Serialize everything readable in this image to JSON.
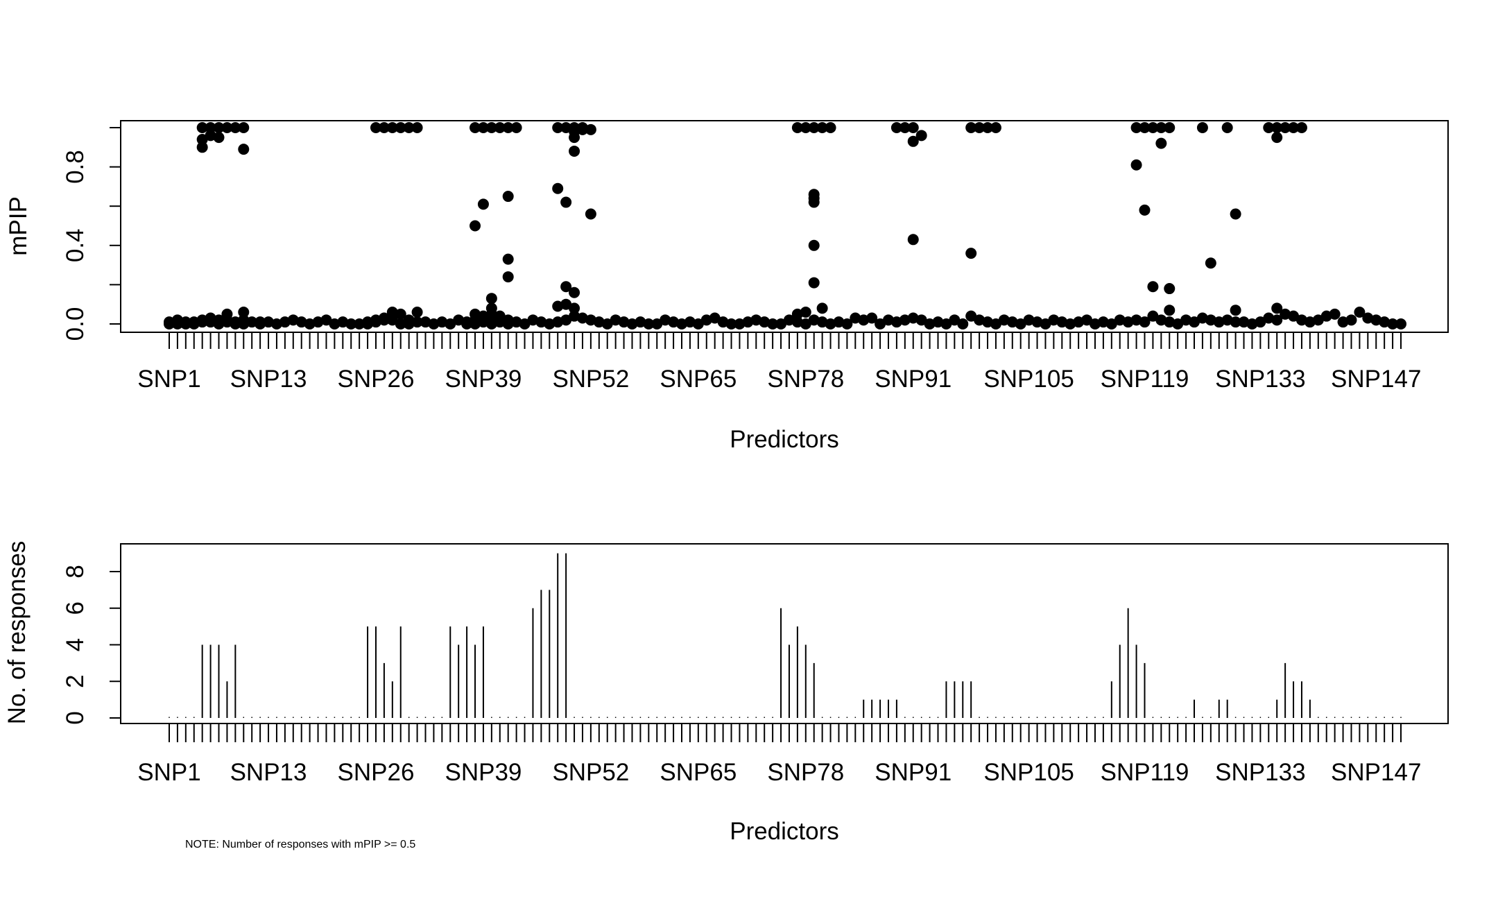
{
  "chart_data": [
    {
      "type": "scatter",
      "xlabel": "Predictors",
      "ylabel": "mPIP",
      "ylim": [
        0,
        1
      ],
      "yticks": [
        "0.0",
        "0.4",
        "0.8"
      ],
      "ytick_values": [
        0.0,
        0.4,
        0.8
      ],
      "n_predictors": 150,
      "xtick_labels": [
        {
          "index": 1,
          "label": "SNP1"
        },
        {
          "index": 13,
          "label": "SNP13"
        },
        {
          "index": 26,
          "label": "SNP26"
        },
        {
          "index": 39,
          "label": "SNP39"
        },
        {
          "index": 52,
          "label": "SNP52"
        },
        {
          "index": 65,
          "label": "SNP65"
        },
        {
          "index": 78,
          "label": "SNP78"
        },
        {
          "index": 91,
          "label": "SNP91"
        },
        {
          "index": 105,
          "label": "SNP105"
        },
        {
          "index": 119,
          "label": "SNP119"
        },
        {
          "index": 133,
          "label": "SNP133"
        },
        {
          "index": 147,
          "label": "SNP147"
        }
      ],
      "points": [
        [
          1,
          0.0
        ],
        [
          1,
          0.01
        ],
        [
          2,
          0.0
        ],
        [
          2,
          0.02
        ],
        [
          3,
          0.0
        ],
        [
          3,
          0.01
        ],
        [
          4,
          0.0
        ],
        [
          4,
          0.01
        ],
        [
          5,
          0.9
        ],
        [
          5,
          0.94
        ],
        [
          5,
          1.0
        ],
        [
          5,
          0.02
        ],
        [
          5,
          0.01
        ],
        [
          6,
          0.96
        ],
        [
          6,
          1.0
        ],
        [
          6,
          0.03
        ],
        [
          6,
          0.01
        ],
        [
          7,
          0.95
        ],
        [
          7,
          1.0
        ],
        [
          7,
          0.02
        ],
        [
          7,
          0.0
        ],
        [
          8,
          1.0
        ],
        [
          8,
          0.05
        ],
        [
          8,
          0.02
        ],
        [
          8,
          0.01
        ],
        [
          9,
          1.0
        ],
        [
          9,
          0.01
        ],
        [
          9,
          0.0
        ],
        [
          10,
          1.0
        ],
        [
          10,
          0.89
        ],
        [
          10,
          0.06
        ],
        [
          10,
          0.02
        ],
        [
          10,
          0.0
        ],
        [
          11,
          0.01
        ],
        [
          12,
          0.0
        ],
        [
          12,
          0.01
        ],
        [
          13,
          0.01
        ],
        [
          14,
          0.0
        ],
        [
          15,
          0.01
        ],
        [
          16,
          0.02
        ],
        [
          17,
          0.01
        ],
        [
          18,
          0.0
        ],
        [
          19,
          0.01
        ],
        [
          20,
          0.02
        ],
        [
          21,
          0.0
        ],
        [
          22,
          0.01
        ],
        [
          23,
          0.0
        ],
        [
          24,
          0.0
        ],
        [
          25,
          0.0
        ],
        [
          25,
          0.01
        ],
        [
          26,
          1.0
        ],
        [
          26,
          0.02
        ],
        [
          26,
          0.01
        ],
        [
          27,
          1.0
        ],
        [
          27,
          0.03
        ],
        [
          27,
          0.02
        ],
        [
          28,
          1.0
        ],
        [
          28,
          0.06
        ],
        [
          28,
          0.02
        ],
        [
          29,
          1.0
        ],
        [
          29,
          0.05
        ],
        [
          29,
          0.0
        ],
        [
          30,
          1.0
        ],
        [
          30,
          0.02
        ],
        [
          30,
          0.0
        ],
        [
          31,
          1.0
        ],
        [
          31,
          0.06
        ],
        [
          31,
          0.01
        ],
        [
          32,
          0.01
        ],
        [
          33,
          0.0
        ],
        [
          34,
          0.01
        ],
        [
          35,
          0.0
        ],
        [
          36,
          0.02
        ],
        [
          37,
          0.0
        ],
        [
          37,
          0.01
        ],
        [
          38,
          1.0
        ],
        [
          38,
          0.5
        ],
        [
          38,
          0.05
        ],
        [
          38,
          0.02
        ],
        [
          38,
          0.0
        ],
        [
          39,
          1.0
        ],
        [
          39,
          0.61
        ],
        [
          39,
          0.04
        ],
        [
          39,
          0.01
        ],
        [
          40,
          1.0
        ],
        [
          40,
          0.13
        ],
        [
          40,
          0.08
        ],
        [
          40,
          0.05
        ],
        [
          40,
          0.02
        ],
        [
          40,
          0.0
        ],
        [
          41,
          1.0
        ],
        [
          41,
          0.04
        ],
        [
          41,
          0.01
        ],
        [
          42,
          1.0
        ],
        [
          42,
          0.65
        ],
        [
          42,
          0.33
        ],
        [
          42,
          0.24
        ],
        [
          42,
          0.02
        ],
        [
          42,
          0.0
        ],
        [
          43,
          1.0
        ],
        [
          43,
          0.01
        ],
        [
          44,
          0.0
        ],
        [
          45,
          0.02
        ],
        [
          46,
          0.01
        ],
        [
          47,
          0.0
        ],
        [
          48,
          1.0
        ],
        [
          48,
          0.69
        ],
        [
          48,
          0.09
        ],
        [
          48,
          0.01
        ],
        [
          49,
          1.0
        ],
        [
          49,
          0.62
        ],
        [
          49,
          0.19
        ],
        [
          49,
          0.1
        ],
        [
          49,
          0.02
        ],
        [
          50,
          1.0
        ],
        [
          50,
          0.98
        ],
        [
          50,
          0.95
        ],
        [
          50,
          0.88
        ],
        [
          50,
          0.16
        ],
        [
          50,
          0.08
        ],
        [
          50,
          0.04
        ],
        [
          51,
          1.0
        ],
        [
          51,
          0.99
        ],
        [
          51,
          0.03
        ],
        [
          52,
          0.99
        ],
        [
          52,
          0.56
        ],
        [
          52,
          0.02
        ],
        [
          53,
          0.01
        ],
        [
          54,
          0.0
        ],
        [
          55,
          0.02
        ],
        [
          56,
          0.01
        ],
        [
          57,
          0.0
        ],
        [
          58,
          0.01
        ],
        [
          59,
          0.0
        ],
        [
          60,
          0.0
        ],
        [
          61,
          0.02
        ],
        [
          62,
          0.01
        ],
        [
          63,
          0.0
        ],
        [
          64,
          0.01
        ],
        [
          65,
          0.0
        ],
        [
          66,
          0.02
        ],
        [
          67,
          0.03
        ],
        [
          68,
          0.01
        ],
        [
          69,
          0.0
        ],
        [
          70,
          0.0
        ],
        [
          71,
          0.01
        ],
        [
          72,
          0.02
        ],
        [
          73,
          0.01
        ],
        [
          74,
          0.0
        ],
        [
          75,
          0.0
        ],
        [
          76,
          0.02
        ],
        [
          77,
          1.0
        ],
        [
          77,
          0.05
        ],
        [
          77,
          0.01
        ],
        [
          78,
          1.0
        ],
        [
          78,
          0.06
        ],
        [
          78,
          0.0
        ],
        [
          79,
          1.0
        ],
        [
          79,
          0.66
        ],
        [
          79,
          0.64
        ],
        [
          79,
          0.62
        ],
        [
          79,
          0.4
        ],
        [
          79,
          0.21
        ],
        [
          79,
          0.02
        ],
        [
          80,
          1.0
        ],
        [
          80,
          0.08
        ],
        [
          80,
          0.01
        ],
        [
          81,
          1.0
        ],
        [
          81,
          0.0
        ],
        [
          82,
          0.01
        ],
        [
          83,
          0.0
        ],
        [
          84,
          0.03
        ],
        [
          85,
          0.02
        ],
        [
          86,
          0.03
        ],
        [
          87,
          0.0
        ],
        [
          88,
          0.02
        ],
        [
          89,
          1.0
        ],
        [
          89,
          0.01
        ],
        [
          90,
          1.0
        ],
        [
          90,
          0.02
        ],
        [
          91,
          1.0
        ],
        [
          91,
          0.93
        ],
        [
          91,
          0.43
        ],
        [
          91,
          0.03
        ],
        [
          92,
          0.96
        ],
        [
          92,
          0.02
        ],
        [
          93,
          0.0
        ],
        [
          94,
          0.01
        ],
        [
          95,
          0.0
        ],
        [
          96,
          0.02
        ],
        [
          97,
          0.0
        ],
        [
          98,
          1.0
        ],
        [
          98,
          0.36
        ],
        [
          98,
          0.04
        ],
        [
          99,
          1.0
        ],
        [
          99,
          0.02
        ],
        [
          100,
          1.0
        ],
        [
          100,
          0.01
        ],
        [
          101,
          1.0
        ],
        [
          101,
          0.0
        ],
        [
          102,
          0.02
        ],
        [
          103,
          0.01
        ],
        [
          104,
          0.0
        ],
        [
          105,
          0.02
        ],
        [
          106,
          0.01
        ],
        [
          107,
          0.0
        ],
        [
          108,
          0.02
        ],
        [
          109,
          0.01
        ],
        [
          110,
          0.0
        ],
        [
          111,
          0.01
        ],
        [
          112,
          0.02
        ],
        [
          113,
          0.0
        ],
        [
          114,
          0.01
        ],
        [
          115,
          0.0
        ],
        [
          116,
          0.02
        ],
        [
          117,
          0.01
        ],
        [
          118,
          1.0
        ],
        [
          118,
          0.81
        ],
        [
          118,
          0.02
        ],
        [
          119,
          1.0
        ],
        [
          119,
          0.58
        ],
        [
          119,
          0.01
        ],
        [
          120,
          1.0
        ],
        [
          120,
          0.19
        ],
        [
          120,
          0.04
        ],
        [
          121,
          1.0
        ],
        [
          121,
          0.92
        ],
        [
          121,
          0.02
        ],
        [
          122,
          1.0
        ],
        [
          122,
          0.18
        ],
        [
          122,
          0.07
        ],
        [
          122,
          0.01
        ],
        [
          123,
          0.0
        ],
        [
          124,
          0.02
        ],
        [
          125,
          0.01
        ],
        [
          126,
          1.0
        ],
        [
          126,
          0.03
        ],
        [
          127,
          0.31
        ],
        [
          127,
          0.02
        ],
        [
          128,
          0.01
        ],
        [
          129,
          1.0
        ],
        [
          129,
          0.02
        ],
        [
          130,
          0.56
        ],
        [
          130,
          0.07
        ],
        [
          130,
          0.01
        ],
        [
          131,
          0.01
        ],
        [
          132,
          0.0
        ],
        [
          133,
          0.01
        ],
        [
          134,
          1.0
        ],
        [
          134,
          0.03
        ],
        [
          135,
          1.0
        ],
        [
          135,
          0.95
        ],
        [
          135,
          0.08
        ],
        [
          135,
          0.02
        ],
        [
          136,
          1.0
        ],
        [
          136,
          0.05
        ],
        [
          137,
          1.0
        ],
        [
          137,
          0.04
        ],
        [
          138,
          1.0
        ],
        [
          138,
          0.02
        ],
        [
          139,
          0.01
        ],
        [
          140,
          0.02
        ],
        [
          141,
          0.04
        ],
        [
          142,
          0.05
        ],
        [
          143,
          0.01
        ],
        [
          144,
          0.02
        ],
        [
          145,
          0.06
        ],
        [
          146,
          0.03
        ],
        [
          147,
          0.02
        ],
        [
          148,
          0.01
        ],
        [
          149,
          0.0
        ],
        [
          150,
          0.0
        ]
      ]
    },
    {
      "type": "bar",
      "xlabel": "Predictors",
      "ylabel": "No. of responses",
      "ylim": [
        0,
        9
      ],
      "yticks": [
        "0",
        "2",
        "4",
        "6",
        "8"
      ],
      "ytick_values": [
        0,
        2,
        4,
        6,
        8
      ],
      "n_predictors": 150,
      "xtick_labels": [
        {
          "index": 1,
          "label": "SNP1"
        },
        {
          "index": 13,
          "label": "SNP13"
        },
        {
          "index": 26,
          "label": "SNP26"
        },
        {
          "index": 39,
          "label": "SNP39"
        },
        {
          "index": 52,
          "label": "SNP52"
        },
        {
          "index": 65,
          "label": "SNP65"
        },
        {
          "index": 78,
          "label": "SNP78"
        },
        {
          "index": 91,
          "label": "SNP91"
        },
        {
          "index": 105,
          "label": "SNP105"
        },
        {
          "index": 119,
          "label": "SNP119"
        },
        {
          "index": 133,
          "label": "SNP133"
        },
        {
          "index": 147,
          "label": "SNP147"
        }
      ],
      "counts": {
        "5": 4,
        "6": 4,
        "7": 4,
        "8": 2,
        "9": 4,
        "25": 5,
        "26": 5,
        "27": 3,
        "28": 2,
        "29": 5,
        "35": 5,
        "36": 4,
        "37": 5,
        "38": 4,
        "39": 5,
        "45": 6,
        "46": 7,
        "47": 7,
        "48": 9,
        "49": 9,
        "75": 6,
        "76": 4,
        "77": 5,
        "78": 4,
        "79": 3,
        "85": 1,
        "86": 1,
        "87": 1,
        "88": 1,
        "89": 1,
        "95": 2,
        "96": 2,
        "97": 2,
        "98": 2,
        "115": 2,
        "116": 4,
        "117": 6,
        "118": 4,
        "119": 3,
        "125": 1,
        "128": 1,
        "129": 1,
        "135": 1,
        "136": 3,
        "137": 2,
        "138": 2,
        "139": 1
      },
      "note": "NOTE: Number of responses with mPIP >= 0.5"
    }
  ]
}
